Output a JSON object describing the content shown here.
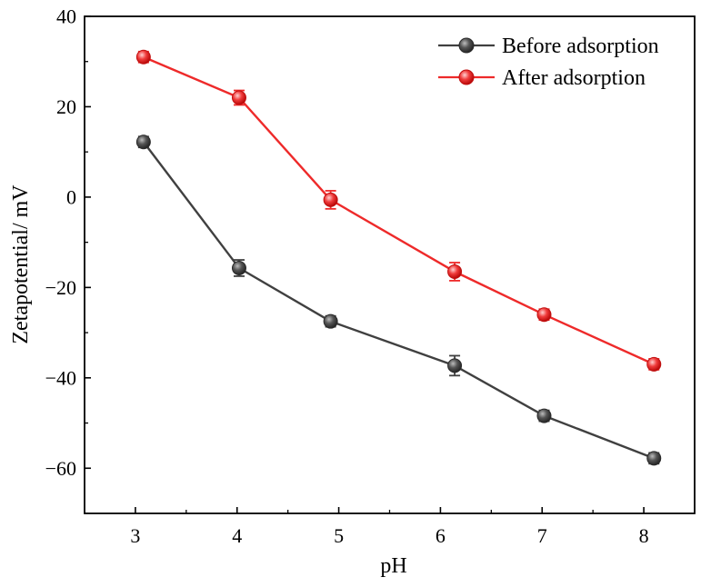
{
  "chart_data": {
    "type": "line",
    "title": "",
    "xlabel": "pH",
    "ylabel": "Zetapotential/ mV",
    "xlim": [
      2.5,
      8.5
    ],
    "ylim": [
      -70,
      40
    ],
    "xticks": [
      3,
      4,
      5,
      6,
      7,
      8
    ],
    "yticks": [
      40,
      20,
      0,
      -20,
      -40,
      -60
    ],
    "x_tick_labels": [
      "3",
      "4",
      "5",
      "6",
      "7",
      "8"
    ],
    "y_tick_labels": [
      "40",
      "20",
      "0",
      "−20",
      "−40",
      "−60"
    ],
    "grid": false,
    "legend_position": "top-right",
    "series": [
      {
        "name": "Before adsorption",
        "color": "#404040",
        "x": [
          3.08,
          4.02,
          4.92,
          6.14,
          7.02,
          8.1
        ],
        "y": [
          12.2,
          -15.7,
          -27.5,
          -37.3,
          -48.4,
          -57.8
        ],
        "err": [
          1.2,
          1.8,
          1.2,
          2.2,
          1.2,
          1.2
        ]
      },
      {
        "name": "After adsorption",
        "color": "#ee2a2a",
        "x": [
          3.08,
          4.02,
          4.92,
          6.14,
          7.02,
          8.1
        ],
        "y": [
          31.0,
          22.0,
          -0.6,
          -16.5,
          -26.0,
          -37.0
        ],
        "err": [
          1.2,
          1.6,
          2.0,
          2.0,
          1.2,
          1.2
        ]
      }
    ]
  }
}
